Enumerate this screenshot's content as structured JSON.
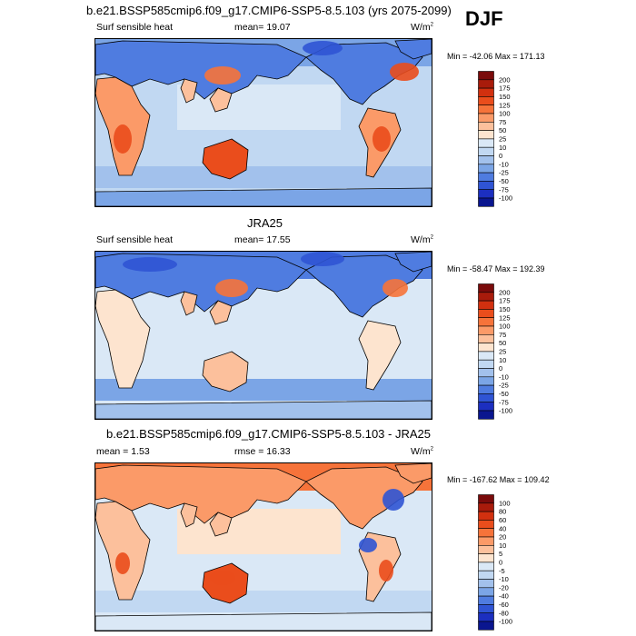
{
  "season_label": "DJF",
  "panels": [
    {
      "title": "b.e21.BSSP585cmip6.f09_g17.CMIP6-SSP5-8.5.103 (yrs 2075-2099)",
      "left_label": "Surf sensible heat",
      "center_label": "mean=  19.07",
      "units": "W/m",
      "units_sup": "2",
      "minmax": "Min = -42.06 Max = 171.13",
      "colorbar": {
        "labels": [
          "200",
          "175",
          "150",
          "125",
          "100",
          "75",
          "50",
          "25",
          "10",
          "0",
          "-10",
          "-25",
          "-50",
          "-75",
          "-100"
        ],
        "colors": [
          "#7a0b0b",
          "#a81b0b",
          "#d2300f",
          "#ea4d1c",
          "#f6733a",
          "#fb9a68",
          "#fcc09c",
          "#fde4cf",
          "#dae8f6",
          "#c1d8f2",
          "#a2c1ec",
          "#7ba5e6",
          "#4f7ce0",
          "#2f54d4",
          "#1c2fc0",
          "#0a168f"
        ]
      }
    },
    {
      "title": "JRA25",
      "left_label": "Surf sensible heat",
      "center_label": "mean=  17.55",
      "units": "W/m",
      "units_sup": "2",
      "minmax": "Min = -58.47 Max = 192.39",
      "colorbar": {
        "labels": [
          "200",
          "175",
          "150",
          "125",
          "100",
          "75",
          "50",
          "25",
          "10",
          "0",
          "-10",
          "-25",
          "-50",
          "-75",
          "-100"
        ],
        "colors": [
          "#7a0b0b",
          "#a81b0b",
          "#d2300f",
          "#ea4d1c",
          "#f6733a",
          "#fb9a68",
          "#fcc09c",
          "#fde4cf",
          "#dae8f6",
          "#c1d8f2",
          "#a2c1ec",
          "#7ba5e6",
          "#4f7ce0",
          "#2f54d4",
          "#1c2fc0",
          "#0a168f"
        ]
      }
    },
    {
      "title": "b.e21.BSSP585cmip6.f09_g17.CMIP6-SSP5-8.5.103 - JRA25",
      "left_label": "mean =   1.53",
      "center_label": "rmse =  16.33",
      "units": "W/m",
      "units_sup": "2",
      "minmax": "Min = -167.62 Max = 109.42",
      "colorbar": {
        "labels": [
          "100",
          "80",
          "60",
          "40",
          "20",
          "10",
          "5",
          "0",
          "-5",
          "-10",
          "-20",
          "-40",
          "-60",
          "-80",
          "-100"
        ],
        "colors": [
          "#7a0b0b",
          "#a81b0b",
          "#d2300f",
          "#ea4d1c",
          "#f6733a",
          "#fb9a68",
          "#fcc09c",
          "#fde4cf",
          "#dae8f6",
          "#c1d8f2",
          "#a2c1ec",
          "#7ba5e6",
          "#4f7ce0",
          "#2f54d4",
          "#1c2fc0",
          "#0a168f"
        ]
      }
    }
  ]
}
